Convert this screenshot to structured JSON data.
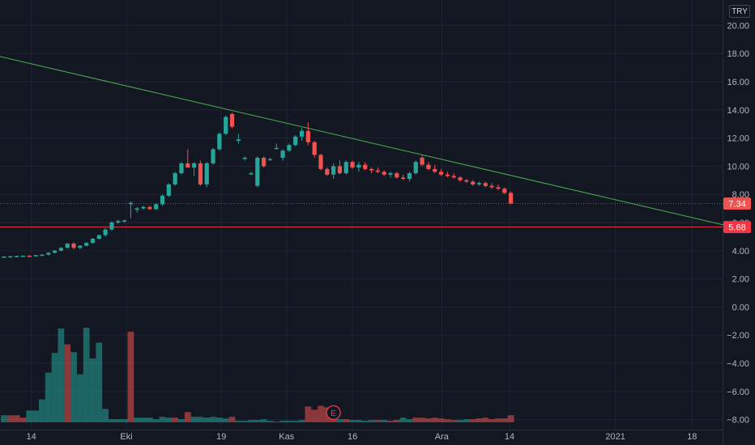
{
  "currency": "TRY",
  "earnings_marker": "E",
  "colors": {
    "up": "#26a69a",
    "down": "#ef5350",
    "trendline": "#4caf50",
    "support": "#f23645",
    "background": "#131722"
  },
  "chart_data": {
    "type": "candlestick",
    "y_axis": {
      "ticks": [
        "20.00",
        "18.00",
        "16.00",
        "14.00",
        "12.00",
        "10.00",
        "8.00",
        "6.00",
        "4.00",
        "2.00",
        "0.00",
        "−2.00",
        "−4.00",
        "−6.00",
        "−8.00"
      ],
      "tick_values": [
        20,
        18,
        16,
        14,
        12,
        10,
        8,
        6,
        4,
        2,
        0,
        -2,
        -4,
        -6,
        -8
      ],
      "range": [
        -9.8,
        21.8
      ],
      "position": "right"
    },
    "x_axis": {
      "ticks": [
        "14",
        "Eki",
        "19",
        "Kas",
        "16",
        "Ara",
        "14",
        "2021",
        "18"
      ]
    },
    "price_labels": [
      {
        "value": "7.34",
        "price": 7.34
      },
      {
        "value": "5.68",
        "price": 5.68
      }
    ],
    "candles": [
      [
        3.55,
        3.6,
        3.5,
        3.58
      ],
      [
        3.58,
        3.62,
        3.54,
        3.6
      ],
      [
        3.6,
        3.65,
        3.55,
        3.62
      ],
      [
        3.62,
        3.66,
        3.57,
        3.64
      ],
      [
        3.64,
        3.68,
        3.58,
        3.62
      ],
      [
        3.62,
        3.7,
        3.58,
        3.68
      ],
      [
        3.68,
        3.75,
        3.62,
        3.72
      ],
      [
        3.72,
        3.9,
        3.65,
        3.85
      ],
      [
        3.85,
        4.05,
        3.8,
        4.0
      ],
      [
        4.0,
        4.25,
        3.95,
        4.2
      ],
      [
        4.2,
        4.55,
        4.15,
        4.5
      ],
      [
        4.5,
        4.6,
        4.1,
        4.2
      ],
      [
        4.2,
        4.4,
        4.1,
        4.35
      ],
      [
        4.35,
        4.6,
        4.3,
        4.55
      ],
      [
        4.55,
        4.9,
        4.5,
        4.85
      ],
      [
        4.85,
        5.15,
        4.8,
        5.1
      ],
      [
        5.1,
        5.6,
        5.0,
        5.5
      ],
      [
        5.5,
        6.1,
        5.4,
        6.0
      ],
      [
        6.0,
        6.2,
        5.9,
        6.1
      ],
      [
        6.1,
        6.2,
        6.0,
        6.15
      ],
      [
        7.3,
        7.5,
        6.3,
        7.4
      ],
      [
        6.9,
        7.1,
        6.7,
        7.0
      ],
      [
        7.0,
        7.2,
        6.9,
        7.1
      ],
      [
        7.1,
        7.2,
        6.9,
        6.95
      ],
      [
        6.95,
        7.4,
        6.9,
        7.3
      ],
      [
        7.3,
        8.0,
        7.2,
        7.9
      ],
      [
        7.9,
        8.8,
        7.8,
        8.7
      ],
      [
        8.7,
        9.6,
        8.6,
        9.5
      ],
      [
        9.5,
        10.3,
        9.4,
        10.2
      ],
      [
        10.2,
        11.2,
        9.9,
        9.9
      ],
      [
        9.9,
        10.3,
        9.3,
        10.2
      ],
      [
        10.2,
        10.4,
        8.6,
        8.7
      ],
      [
        8.7,
        10.3,
        8.5,
        10.2
      ],
      [
        10.2,
        11.3,
        10.1,
        11.2
      ],
      [
        11.2,
        12.4,
        11.1,
        12.3
      ],
      [
        12.3,
        13.6,
        12.2,
        13.5
      ],
      [
        13.7,
        13.8,
        12.7,
        12.8
      ],
      [
        11.8,
        12.3,
        11.6,
        11.9
      ],
      [
        10.6,
        10.7,
        10.4,
        10.6
      ],
      [
        9.5,
        9.6,
        9.4,
        9.5
      ],
      [
        8.6,
        10.7,
        8.5,
        10.6
      ],
      [
        10.6,
        10.7,
        9.9,
        10.0
      ],
      [
        10.5,
        10.6,
        10.4,
        10.5
      ],
      [
        11.3,
        11.6,
        11.2,
        11.3
      ],
      [
        10.6,
        11.2,
        10.4,
        11.1
      ],
      [
        11.1,
        11.6,
        11.0,
        11.5
      ],
      [
        11.5,
        12.2,
        11.4,
        12.1
      ],
      [
        12.1,
        12.7,
        11.8,
        12.5
      ],
      [
        12.5,
        13.1,
        11.5,
        11.7
      ],
      [
        11.7,
        11.8,
        10.6,
        10.8
      ],
      [
        10.8,
        10.9,
        9.7,
        9.8
      ],
      [
        9.8,
        9.9,
        9.3,
        9.4
      ],
      [
        9.4,
        10.2,
        9.1,
        10.0
      ],
      [
        10.0,
        10.4,
        9.4,
        9.5
      ],
      [
        9.5,
        10.4,
        9.4,
        10.3
      ],
      [
        10.3,
        10.4,
        9.8,
        9.9
      ],
      [
        9.9,
        10.3,
        9.6,
        10.1
      ],
      [
        10.1,
        10.3,
        9.7,
        9.8
      ],
      [
        9.8,
        9.9,
        9.5,
        9.7
      ],
      [
        9.7,
        9.9,
        9.5,
        9.6
      ],
      [
        9.6,
        9.7,
        9.3,
        9.4
      ],
      [
        9.4,
        9.6,
        9.2,
        9.5
      ],
      [
        9.5,
        9.6,
        9.1,
        9.2
      ],
      [
        9.2,
        9.4,
        9.0,
        9.1
      ],
      [
        9.1,
        9.6,
        8.9,
        9.5
      ],
      [
        9.5,
        10.4,
        9.4,
        10.3
      ],
      [
        10.6,
        10.8,
        10.0,
        10.1
      ],
      [
        10.1,
        10.3,
        9.7,
        9.8
      ],
      [
        9.8,
        10.1,
        9.5,
        9.6
      ],
      [
        9.6,
        9.8,
        9.3,
        9.4
      ],
      [
        9.4,
        9.6,
        9.2,
        9.3
      ],
      [
        9.3,
        9.5,
        9.1,
        9.2
      ],
      [
        9.2,
        9.3,
        8.9,
        9.0
      ],
      [
        9.0,
        9.1,
        8.8,
        8.9
      ],
      [
        8.9,
        9.0,
        8.6,
        8.7
      ],
      [
        8.7,
        8.9,
        8.6,
        8.8
      ],
      [
        8.8,
        8.9,
        8.5,
        8.6
      ],
      [
        8.6,
        8.8,
        8.4,
        8.5
      ],
      [
        8.5,
        8.7,
        8.3,
        8.4
      ],
      [
        8.4,
        8.5,
        8.0,
        8.1
      ],
      [
        8.1,
        8.2,
        7.3,
        7.34
      ]
    ],
    "volumes": [
      [
        0.9,
        0
      ],
      [
        0.9,
        1
      ],
      [
        0.9,
        1
      ],
      [
        0.6,
        1
      ],
      [
        1.5,
        0
      ],
      [
        1.5,
        0
      ],
      [
        2.9,
        0
      ],
      [
        6.3,
        0
      ],
      [
        8.8,
        0
      ],
      [
        11.9,
        0
      ],
      [
        9.9,
        1
      ],
      [
        8.9,
        0
      ],
      [
        6.1,
        0
      ],
      [
        12.0,
        0
      ],
      [
        8.1,
        0
      ],
      [
        10.1,
        0
      ],
      [
        1.7,
        0
      ],
      [
        0.4,
        0
      ],
      [
        0.4,
        0
      ],
      [
        0.4,
        0
      ],
      [
        11.5,
        1
      ],
      [
        0.6,
        0
      ],
      [
        0.6,
        0
      ],
      [
        0.6,
        0
      ],
      [
        0.4,
        0
      ],
      [
        0.7,
        0
      ],
      [
        0.6,
        0
      ],
      [
        0.6,
        1
      ],
      [
        0.4,
        0
      ],
      [
        1.3,
        1
      ],
      [
        0.7,
        0
      ],
      [
        0.7,
        0
      ],
      [
        0.6,
        0
      ],
      [
        0.7,
        0
      ],
      [
        0.6,
        0
      ],
      [
        0.5,
        0
      ],
      [
        0.7,
        1
      ],
      [
        0.2,
        0
      ],
      [
        0.2,
        0
      ],
      [
        0.3,
        0
      ],
      [
        0.3,
        0
      ],
      [
        0.4,
        0
      ],
      [
        0.2,
        0
      ],
      [
        0.1,
        0
      ],
      [
        0.2,
        0
      ],
      [
        0.2,
        0
      ],
      [
        0.2,
        0
      ],
      [
        0.3,
        0
      ],
      [
        2.0,
        1
      ],
      [
        1.6,
        1
      ],
      [
        2.1,
        1
      ],
      [
        1.9,
        1
      ],
      [
        1.5,
        1
      ],
      [
        0.4,
        0
      ],
      [
        0.4,
        1
      ],
      [
        0.3,
        0
      ],
      [
        0.3,
        0
      ],
      [
        0.2,
        0
      ],
      [
        0.3,
        0
      ],
      [
        0.3,
        1
      ],
      [
        0.3,
        0
      ],
      [
        0.2,
        1
      ],
      [
        0.3,
        1
      ],
      [
        0.6,
        0
      ],
      [
        0.4,
        0
      ],
      [
        0.6,
        1
      ],
      [
        0.6,
        1
      ],
      [
        0.5,
        1
      ],
      [
        0.6,
        1
      ],
      [
        0.5,
        1
      ],
      [
        0.4,
        1
      ],
      [
        0.3,
        1
      ],
      [
        0.3,
        0
      ],
      [
        0.4,
        0
      ],
      [
        0.4,
        1
      ],
      [
        0.5,
        1
      ],
      [
        0.6,
        1
      ],
      [
        0.4,
        1
      ],
      [
        0.5,
        1
      ],
      [
        0.5,
        1
      ],
      [
        0.9,
        1
      ]
    ],
    "volume_scale_max": 12,
    "trendline": {
      "from": {
        "index": -2.2,
        "price": 17.95
      },
      "to": {
        "index": 115.0,
        "price": 5.68
      }
    },
    "support_line": {
      "price": 5.68
    }
  }
}
